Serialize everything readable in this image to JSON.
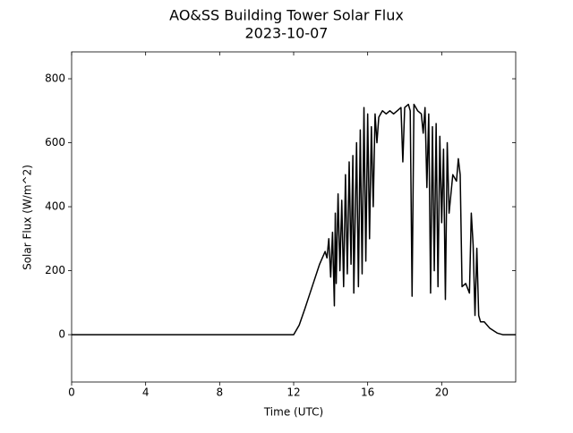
{
  "chart_data": {
    "type": "line",
    "title": "AO&SS Building Tower Solar Flux",
    "subtitle": "2023-10-07",
    "x_label": "Time (UTC)",
    "y_label": "Solar Flux (W/m^2)",
    "color": "#000000",
    "xlim": [
      0,
      24
    ],
    "xticks": [
      0,
      4,
      8,
      12,
      16,
      20
    ],
    "ylim": [
      -148,
      884
    ],
    "yticks": [
      0,
      200,
      400,
      600,
      800
    ],
    "grid": false,
    "x": [
      0,
      12,
      12.3,
      12.6,
      13.0,
      13.4,
      13.7,
      13.8,
      13.9,
      14.0,
      14.1,
      14.2,
      14.25,
      14.3,
      14.4,
      14.5,
      14.6,
      14.7,
      14.8,
      14.9,
      15.0,
      15.1,
      15.2,
      15.25,
      15.4,
      15.5,
      15.6,
      15.7,
      15.8,
      15.9,
      16.0,
      16.1,
      16.2,
      16.3,
      16.4,
      16.5,
      16.6,
      16.8,
      17.0,
      17.2,
      17.4,
      17.6,
      17.8,
      17.9,
      18.0,
      18.2,
      18.3,
      18.4,
      18.5,
      18.7,
      18.9,
      19.0,
      19.1,
      19.2,
      19.3,
      19.4,
      19.5,
      19.6,
      19.7,
      19.8,
      19.9,
      20.0,
      20.1,
      20.2,
      20.3,
      20.4,
      20.6,
      20.8,
      20.9,
      21.0,
      21.1,
      21.3,
      21.5,
      21.6,
      21.7,
      21.8,
      21.9,
      22.0,
      22.1,
      22.3,
      22.6,
      23.0,
      23.3,
      24
    ],
    "values": [
      0,
      0,
      30,
      80,
      150,
      220,
      260,
      240,
      300,
      180,
      320,
      90,
      380,
      160,
      440,
      200,
      420,
      150,
      500,
      190,
      540,
      220,
      560,
      130,
      600,
      150,
      640,
      190,
      710,
      230,
      690,
      300,
      650,
      400,
      690,
      600,
      680,
      700,
      690,
      700,
      690,
      700,
      710,
      540,
      710,
      720,
      700,
      120,
      720,
      700,
      690,
      630,
      710,
      460,
      690,
      130,
      650,
      200,
      660,
      150,
      620,
      350,
      580,
      110,
      600,
      380,
      500,
      480,
      550,
      500,
      150,
      160,
      130,
      380,
      280,
      60,
      270,
      60,
      40,
      40,
      20,
      5,
      0,
      0
    ]
  }
}
